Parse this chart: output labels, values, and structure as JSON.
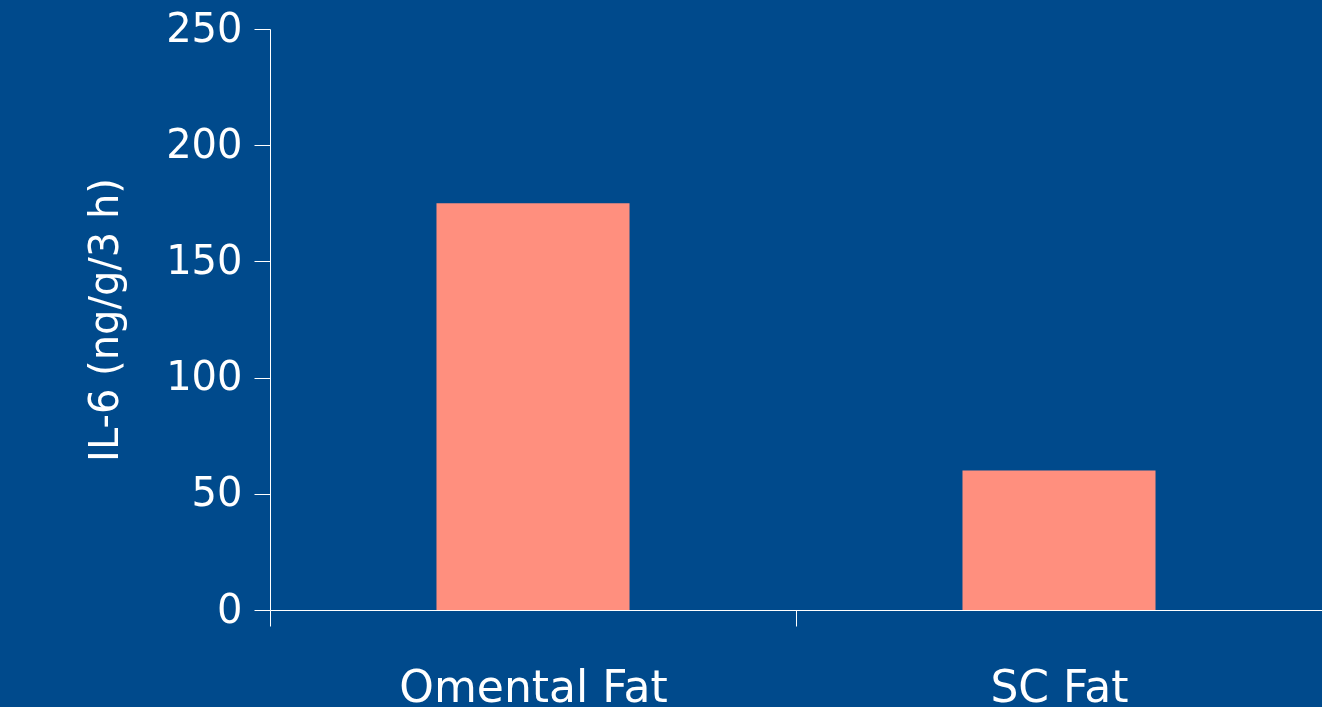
{
  "chart_data": {
    "type": "bar",
    "ylabel": "IL-6 (ng/g/3 h)",
    "categories": [
      "Omental Fat",
      "SC Fat"
    ],
    "values": [
      175,
      60
    ],
    "color": "#ff8f7e",
    "ylim": [
      0,
      250
    ],
    "yticks": [
      0,
      50,
      100,
      150,
      200,
      250
    ],
    "grid": false
  }
}
